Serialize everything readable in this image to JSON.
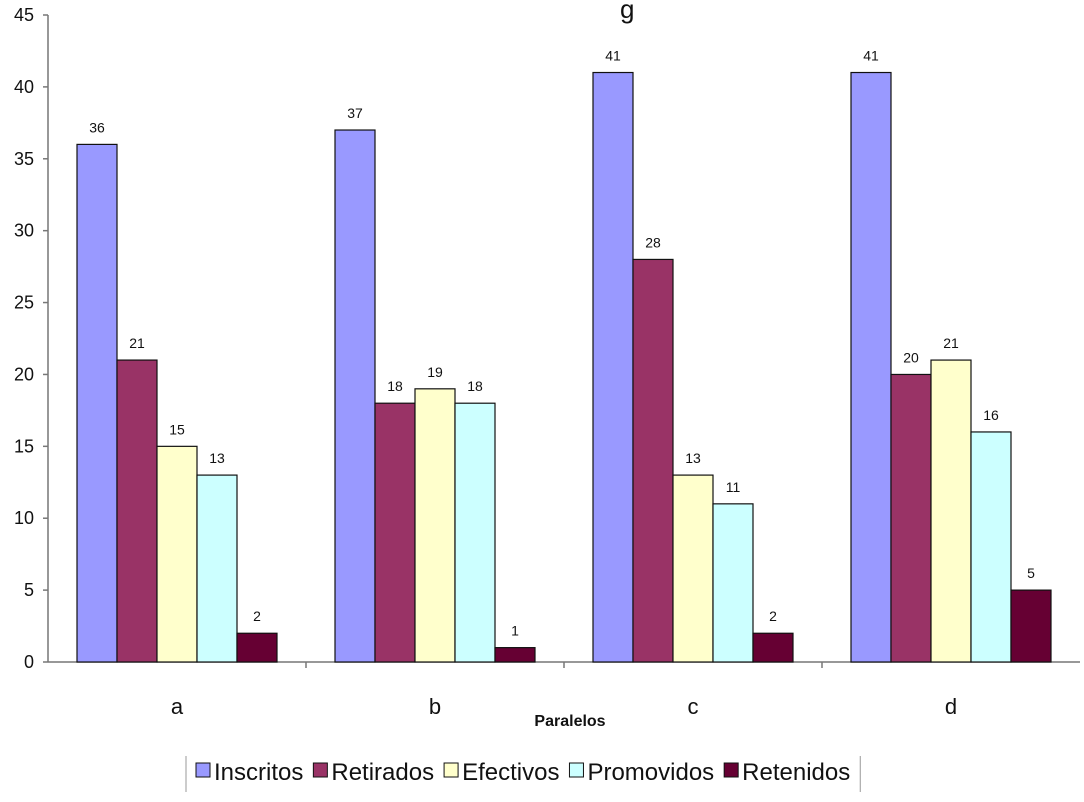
{
  "chart_data": {
    "type": "bar",
    "title_fragment": "g",
    "xlabel": "Paralelos",
    "ylabel": "",
    "ylim": [
      0,
      45
    ],
    "yticks": [
      0,
      5,
      10,
      15,
      20,
      25,
      30,
      35,
      40,
      45
    ],
    "categories": [
      "a",
      "b",
      "c",
      "d"
    ],
    "series": [
      {
        "name": "Inscritos",
        "color": "#9999ff",
        "values": [
          36,
          37,
          41,
          41
        ]
      },
      {
        "name": "Retirados",
        "color": "#993366",
        "values": [
          21,
          18,
          28,
          20
        ]
      },
      {
        "name": "Efectivos",
        "color": "#ffffcc",
        "values": [
          15,
          19,
          13,
          21
        ]
      },
      {
        "name": "Promovidos",
        "color": "#ccffff",
        "values": [
          13,
          18,
          11,
          16
        ]
      },
      {
        "name": "Retenidos",
        "color": "#660033",
        "values": [
          2,
          1,
          2,
          5
        ]
      }
    ],
    "grid": false,
    "legend_position": "bottom"
  }
}
